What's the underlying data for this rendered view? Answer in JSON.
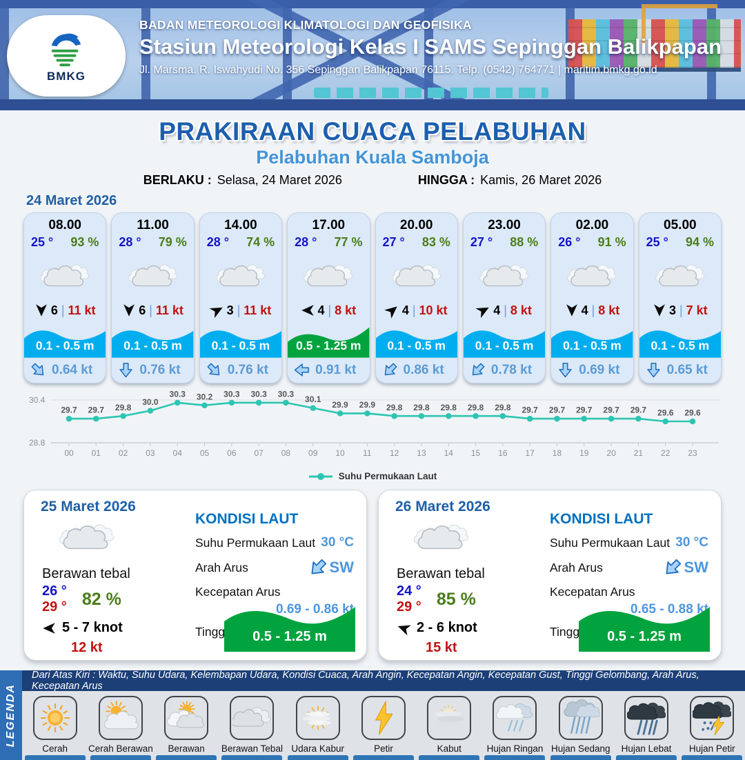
{
  "header": {
    "org": "BADAN METEOROLOGI KLIMATOLOGI DAN GEOFISIKA",
    "station": "Stasiun Meteorologi Kelas I SAMS Sepinggan Balikpapan",
    "address": "Jl. Marsma. R. Iswahyudi No. 356 Sepinggan Balikpapan 76115. Telp. (0542) 764771 | maritim.bmkg.go.id",
    "logo_text": "BMKG"
  },
  "title": {
    "main": "PRAKIRAAN CUACA PELABUHAN",
    "subtitle": "Pelabuhan Kuala Samboja",
    "valid_from_label": "BERLAKU :",
    "valid_from": "Selasa, 24 Maret 2026",
    "valid_to_label": "HINGGA :",
    "valid_to": "Kamis, 26 Maret 2026"
  },
  "colors": {
    "accent_blue": "#1c5fae",
    "subtitle_blue": "#4494d6",
    "temp_blue": "#1414cc",
    "humidity_green": "#4a7d1a",
    "gust_red": "#c11212",
    "wave_blue": "#00aeef",
    "wave_green": "#00a33e",
    "current_blue": "#5b9bd5",
    "chart_teal": "#2cc5b2"
  },
  "day1": {
    "date": "24 Maret 2026",
    "condition": "berawan-tebal",
    "cards": [
      {
        "time": "08.00",
        "temp": "25 °",
        "humidity": "93 %",
        "wind_speed": "6",
        "gust": "11 kt",
        "wind_dir_deg": 180,
        "wave": "0.1 - 0.5 m",
        "wave_color": "blue",
        "current": "0.64 kt",
        "current_dir_deg": 135
      },
      {
        "time": "11.00",
        "temp": "28 °",
        "humidity": "79 %",
        "wind_speed": "6",
        "gust": "11 kt",
        "wind_dir_deg": 180,
        "wave": "0.1 - 0.5 m",
        "wave_color": "blue",
        "current": "0.76 kt",
        "current_dir_deg": 180
      },
      {
        "time": "14.00",
        "temp": "28 °",
        "humidity": "74 %",
        "wind_speed": "3",
        "gust": "11 kt",
        "wind_dir_deg": 62,
        "wave": "0.1 - 0.5 m",
        "wave_color": "blue",
        "current": "0.76 kt",
        "current_dir_deg": 135
      },
      {
        "time": "17.00",
        "temp": "28 °",
        "humidity": "77 %",
        "wind_speed": "4",
        "gust": "8 kt",
        "wind_dir_deg": 270,
        "wave": "0.5 - 1.25 m",
        "wave_color": "green",
        "current": "0.91 kt",
        "current_dir_deg": 270
      },
      {
        "time": "20.00",
        "temp": "27 °",
        "humidity": "83 %",
        "wind_speed": "4",
        "gust": "10 kt",
        "wind_dir_deg": 50,
        "wave": "0.1 - 0.5 m",
        "wave_color": "blue",
        "current": "0.86 kt",
        "current_dir_deg": 225
      },
      {
        "time": "23.00",
        "temp": "27 °",
        "humidity": "88 %",
        "wind_speed": "4",
        "gust": "8 kt",
        "wind_dir_deg": 62,
        "wave": "0.1 - 0.5 m",
        "wave_color": "blue",
        "current": "0.78 kt",
        "current_dir_deg": 225
      },
      {
        "time": "02.00",
        "temp": "26 °",
        "humidity": "91 %",
        "wind_speed": "4",
        "gust": "8 kt",
        "wind_dir_deg": 180,
        "wave": "0.1 - 0.5 m",
        "wave_color": "blue",
        "current": "0.69 kt",
        "current_dir_deg": 180
      },
      {
        "time": "05.00",
        "temp": "25 °",
        "humidity": "94 %",
        "wind_speed": "3",
        "gust": "7 kt",
        "wind_dir_deg": 180,
        "wave": "0.1 - 0.5 m",
        "wave_color": "blue",
        "current": "0.65 kt",
        "current_dir_deg": 180
      }
    ]
  },
  "chart_data": {
    "type": "line",
    "x": [
      "00",
      "01",
      "02",
      "03",
      "04",
      "05",
      "06",
      "07",
      "08",
      "09",
      "10",
      "11",
      "12",
      "13",
      "14",
      "15",
      "16",
      "17",
      "18",
      "19",
      "20",
      "21",
      "22",
      "23"
    ],
    "series": [
      {
        "name": "Suhu Permukaan Laut",
        "values": [
          29.7,
          29.7,
          29.8,
          30.0,
          30.3,
          30.2,
          30.3,
          30.3,
          30.3,
          30.1,
          29.9,
          29.9,
          29.8,
          29.8,
          29.8,
          29.8,
          29.8,
          29.7,
          29.7,
          29.7,
          29.7,
          29.7,
          29.6,
          29.6
        ]
      }
    ],
    "ylim": [
      28.8,
      30.4
    ],
    "y_ticks": [
      "30.4",
      "28.8"
    ],
    "grid": "top-and-bottom-lines-only",
    "legend_position": "bottom",
    "color": "#2cc5b2"
  },
  "daily": [
    {
      "date": "25 Maret 2026",
      "condition": "Berawan tebal",
      "temp_min": "26 °",
      "temp_max": "29 °",
      "humidity": "82 %",
      "wind_range": "5  - 7 knot",
      "wind_dir_deg": 270,
      "gust": "12 kt",
      "sea": {
        "title": "KONDISI LAUT",
        "sst_label": "Suhu Permukaan Laut",
        "sst": "30 °C",
        "current_dir_label": "Arah Arus",
        "current_dir": "SW",
        "current_dir_deg": 225,
        "current_speed_label": "Kecepatan Arus",
        "current_speed": "0.69  - 0.86 kt",
        "wave_label": "Tinggi Gelombang",
        "wave": "0.5 - 1.25 m"
      }
    },
    {
      "date": "26 Maret 2026",
      "condition": "Berawan tebal",
      "temp_min": "24 °",
      "temp_max": "29 °",
      "humidity": "85 %",
      "wind_range": "2  - 6 knot",
      "wind_dir_deg": 290,
      "gust": "15 kt",
      "sea": {
        "title": "KONDISI LAUT",
        "sst_label": "Suhu Permukaan Laut",
        "sst": "30 °C",
        "current_dir_label": "Arah Arus",
        "current_dir": "SW",
        "current_dir_deg": 225,
        "current_speed_label": "Kecepatan Arus",
        "current_speed": "0.65  - 0.88 kt",
        "wave_label": "Tinggi Gelombang",
        "wave": "0.5 - 1.25 m"
      }
    }
  ],
  "legend": {
    "title": "LEGENDA",
    "description": "Dari Atas Kiri : Waktu, Suhu Udara, Kelembapan Udara, Kondisi Cuaca, Arah Angin, Kecepatan Angin, Kecepatan Gust, Tinggi Gelombang, Arah Arus, Kecepatan Arus",
    "items": [
      {
        "label": "Cerah",
        "icon": "cerah"
      },
      {
        "label": "Cerah Berawan",
        "icon": "cerah-berawan"
      },
      {
        "label": "Berawan",
        "icon": "berawan"
      },
      {
        "label": "Berawan Tebal",
        "icon": "berawan-tebal"
      },
      {
        "label": "Udara Kabur",
        "icon": "udara-kabur"
      },
      {
        "label": "Petir",
        "icon": "petir"
      },
      {
        "label": "Kabut",
        "icon": "kabut"
      },
      {
        "label": "Hujan Ringan",
        "icon": "hujan-ringan"
      },
      {
        "label": "Hujan Sedang",
        "icon": "hujan-sedang"
      },
      {
        "label": "Hujan Lebat",
        "icon": "hujan-lebat"
      },
      {
        "label": "Hujan Petir",
        "icon": "hujan-petir"
      }
    ]
  }
}
